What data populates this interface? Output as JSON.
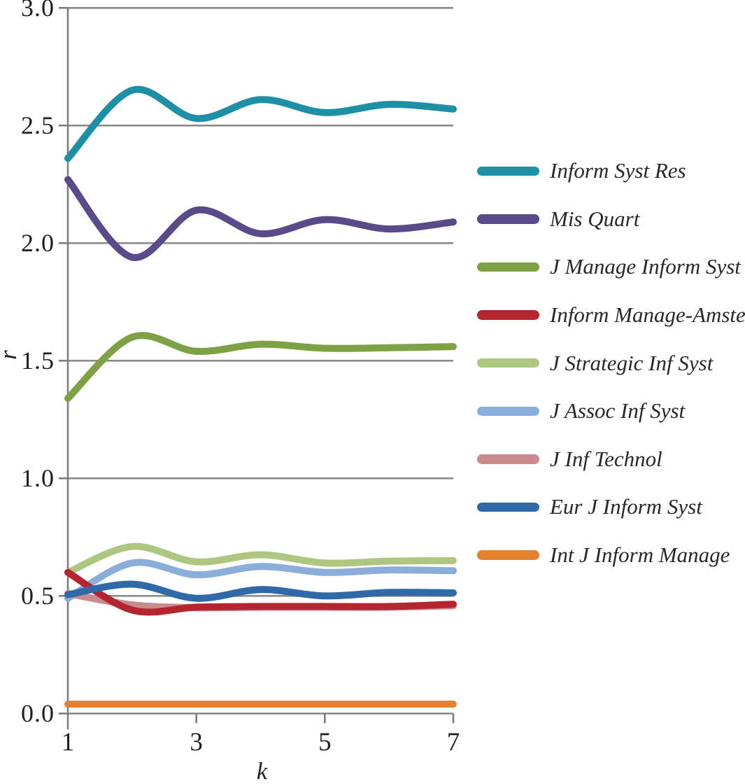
{
  "figure": {
    "background": "#ffffff",
    "grid_color": "#8c8c8c",
    "axis_color": "#7d7d7d",
    "text_color": "#231f20"
  },
  "chart_data": {
    "type": "line",
    "title": "",
    "xlabel": "k",
    "ylabel": "r",
    "x": [
      1,
      2,
      3,
      4,
      5,
      6,
      7
    ],
    "x_ticks": [
      "1",
      "3",
      "5",
      "7"
    ],
    "y_ticks": [
      "3.0",
      "2.5",
      "2.0",
      "1.5",
      "1.0",
      "0.5",
      "0.0"
    ],
    "xlim": [
      1,
      7
    ],
    "ylim": [
      0.0,
      3.0
    ],
    "grid": "horizontal",
    "line_style": "smooth-spline",
    "legend_position": "right",
    "series": [
      {
        "name": "Inform Syst Res",
        "color": "#1e90a5",
        "values": [
          2.36,
          2.65,
          2.53,
          2.61,
          2.555,
          2.59,
          2.57
        ]
      },
      {
        "name": "Mis Quart",
        "color": "#5b4a89",
        "values": [
          2.27,
          1.94,
          2.14,
          2.04,
          2.1,
          2.06,
          2.09
        ]
      },
      {
        "name": "J Manage Inform Syst",
        "color": "#7da144",
        "values": [
          1.34,
          1.6,
          1.54,
          1.57,
          1.553,
          1.555,
          1.56
        ]
      },
      {
        "name": "Inform Manage-Amster",
        "color": "#b52530",
        "values": [
          0.6,
          0.44,
          0.452,
          0.455,
          0.455,
          0.455,
          0.465
        ]
      },
      {
        "name": "J Strategic Inf Syst",
        "color": "#adc781",
        "values": [
          0.6,
          0.71,
          0.645,
          0.675,
          0.64,
          0.648,
          0.65
        ]
      },
      {
        "name": "J Assoc Inf Syst",
        "color": "#8badda",
        "values": [
          0.49,
          0.64,
          0.59,
          0.625,
          0.6,
          0.61,
          0.607
        ]
      },
      {
        "name": "J Inf Technol",
        "color": "#ca8a8e",
        "values": [
          0.51,
          0.462,
          0.45,
          0.452,
          0.452,
          0.452,
          0.458
        ]
      },
      {
        "name": "Eur J Inform Syst",
        "color": "#2f69a8",
        "values": [
          0.505,
          0.55,
          0.49,
          0.527,
          0.5,
          0.515,
          0.513
        ]
      },
      {
        "name": "Int J Inform Manage",
        "color": "#e2822e",
        "values": [
          0.04,
          0.04,
          0.04,
          0.04,
          0.04,
          0.04,
          0.04
        ]
      }
    ]
  }
}
